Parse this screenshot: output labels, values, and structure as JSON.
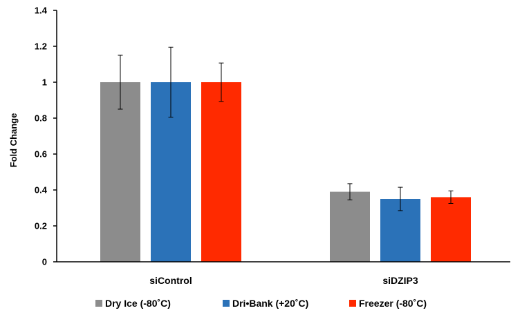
{
  "chart_data": {
    "type": "bar",
    "title": "",
    "xlabel": "",
    "ylabel": "Fold Change",
    "ylim": [
      0,
      1.4
    ],
    "yticks": [
      0,
      0.2,
      0.4,
      0.6,
      0.8,
      1,
      1.2,
      1.4
    ],
    "ytick_labels": [
      "0",
      "0.2",
      "0.4",
      "0.6",
      "0.8",
      "1",
      "1.2",
      "1.4"
    ],
    "grid": false,
    "legend_position": "bottom",
    "categories": [
      "siControl",
      "siDZIP3"
    ],
    "series": [
      {
        "name": "Dry Ice (-80˚C)",
        "color": "#8c8c8c",
        "values": [
          1.0,
          0.39
        ],
        "errors": [
          0.15,
          0.045
        ]
      },
      {
        "name": "Dri•Bank (+20˚C)",
        "color": "#2b72b8",
        "values": [
          1.0,
          0.35
        ],
        "errors": [
          0.195,
          0.065
        ]
      },
      {
        "name": "Freezer (-80˚C)",
        "color": "#ff2a00",
        "values": [
          1.0,
          0.36
        ],
        "errors": [
          0.107,
          0.035
        ]
      }
    ]
  }
}
